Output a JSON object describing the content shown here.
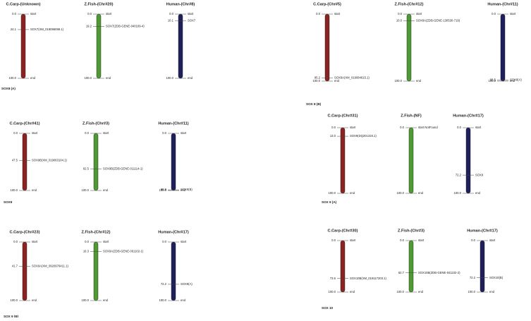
{
  "colors": {
    "red": "#8b2323",
    "green": "#4f9a32",
    "blue": "#1f1f5c",
    "text": "#222222",
    "line": "#444444"
  },
  "panels": [
    {
      "label": "SOX8 (A)",
      "tracks": [
        {
          "title": "C.Carp-(Unknown)",
          "color": "red",
          "markers": [
            {
              "pos": "0.0",
              "name": "start"
            },
            {
              "pos": "24.1",
              "name": "SOX7(XM_019096099.1)"
            },
            {
              "pos": "100.0",
              "name": "end"
            }
          ]
        },
        {
          "title": "Z.Fish-(Chr#20)",
          "color": "green",
          "markers": [
            {
              "pos": "0.0",
              "name": "start"
            },
            {
              "pos": "19.2",
              "name": "SOX7(ZDB-GENE-040109-4)"
            },
            {
              "pos": "100.0",
              "name": "end"
            }
          ]
        },
        {
          "title": "Human-(Chr#8)",
          "color": "blue",
          "markers": [
            {
              "pos": "0.0",
              "name": "start"
            },
            {
              "pos": "10.1",
              "name": "SOX7"
            },
            {
              "pos": "100.0",
              "name": "end"
            }
          ]
        }
      ]
    },
    {
      "label": "SOX 8 (B)",
      "tracks": [
        {
          "title": "C.Carp-(Chr#5)",
          "color": "red",
          "markers": [
            {
              "pos": "0.0",
              "name": "start"
            },
            {
              "pos": "95.2",
              "name": "SOX8A(XM_019084615.1)"
            },
            {
              "pos": "100.0",
              "name": "end"
            }
          ]
        },
        {
          "title": "Z.Fish-(Chr#12)",
          "color": "green",
          "markers": [
            {
              "pos": "0.0",
              "name": "start"
            },
            {
              "pos": "10.0",
              "name": "SOX8A(ZDB-GENE-130530-719)"
            },
            {
              "pos": "100.0",
              "name": "end"
            }
          ]
        },
        {
          "title": "Human-(Chr#11)",
          "color": "blue",
          "markers": [
            {
              "pos": "0.0",
              "name": "start"
            },
            {
              "pos": "98.5",
              "name": "SOX8(A)"
            },
            {
              "pos": "100.0",
              "name": "end"
            }
          ]
        }
      ]
    },
    {
      "label": "SOX9",
      "tracks": [
        {
          "title": "C.Carp-(Chr#41)",
          "color": "red",
          "markers": [
            {
              "pos": "0.0",
              "name": "start"
            },
            {
              "pos": "47.5",
              "name": "SOX9B(XM_019063104.1)"
            },
            {
              "pos": "100.0",
              "name": "end"
            }
          ]
        },
        {
          "title": "Z.Fish-(Chr#3)",
          "color": "green",
          "markers": [
            {
              "pos": "0.0",
              "name": "start"
            },
            {
              "pos": "62.5",
              "name": "SOX9B(ZDB-GENE-011114-1)"
            },
            {
              "pos": "100.0",
              "name": "end"
            }
          ]
        },
        {
          "title": "Human-(Chr#11)",
          "color": "blue",
          "markers": [
            {
              "pos": "0.0",
              "name": "start"
            },
            {
              "pos": "98.9",
              "name": "SOX9(B)"
            },
            {
              "pos": "100.0",
              "name": "end"
            }
          ]
        }
      ]
    },
    {
      "label": "SOX 9 (A)",
      "tracks": [
        {
          "title": "C.Carp-(Chr#31)",
          "color": "red",
          "markers": [
            {
              "pos": "0.0",
              "name": "start"
            },
            {
              "pos": "13.0",
              "name": "SOX9(DQ201319.1)"
            },
            {
              "pos": "100.0",
              "name": "end"
            }
          ]
        },
        {
          "title": "Z.Fish-(NF)",
          "color": "green",
          "markers": [
            {
              "pos": "0.0",
              "name": "start NotFound"
            },
            {
              "pos": "100.0",
              "name": "end"
            }
          ]
        },
        {
          "title": "Human-(Chr#17)",
          "color": "blue",
          "markers": [
            {
              "pos": "0.0",
              "name": "start"
            },
            {
              "pos": "72.2",
              "name": "SOX9"
            },
            {
              "pos": "100.0",
              "name": "end"
            }
          ]
        }
      ]
    },
    {
      "label": "SOX 9 (B)",
      "tracks": [
        {
          "title": "C.Carp-(Chr#23)",
          "color": "red",
          "markers": [
            {
              "pos": "0.0",
              "name": "start"
            },
            {
              "pos": "41.7",
              "name": "SOX9A(XM_0920976411.1)"
            },
            {
              "pos": "100.0",
              "name": "end"
            }
          ]
        },
        {
          "title": "Z.Fish-(Chr#12)",
          "color": "green",
          "markers": [
            {
              "pos": "0.0",
              "name": "start"
            },
            {
              "pos": "16.3",
              "name": "SOX9A(ZDB-GENE-061102-1)"
            },
            {
              "pos": "100.0",
              "name": "end"
            }
          ]
        },
        {
          "title": "Human-(Chr#17)",
          "color": "blue",
          "markers": [
            {
              "pos": "0.0",
              "name": "start"
            },
            {
              "pos": "72.2",
              "name": "SOX9(A)"
            },
            {
              "pos": "100.0",
              "name": "end"
            }
          ]
        }
      ]
    },
    {
      "label": "SOX 10",
      "tracks": [
        {
          "title": "C.Carp-(Chr#30)",
          "color": "red",
          "markers": [
            {
              "pos": "0.0",
              "name": "start"
            },
            {
              "pos": "73.6",
              "name": "SOX10B(XM_019117203.1)"
            },
            {
              "pos": "100.0",
              "name": "end"
            }
          ]
        },
        {
          "title": "Z.Fish-(Chr#3)",
          "color": "green",
          "markers": [
            {
              "pos": "0.0",
              "name": "start"
            },
            {
              "pos": "62.7",
              "name": "SOX10B(ZDB-GENE-041102-2)"
            },
            {
              "pos": "100.0",
              "name": "end"
            }
          ]
        },
        {
          "title": "Human-(Chr#17)",
          "color": "blue",
          "markers": [
            {
              "pos": "0.0",
              "name": "start"
            },
            {
              "pos": "72.2",
              "name": "SOX10(B)"
            },
            {
              "pos": "100.0",
              "name": "end"
            }
          ]
        }
      ]
    }
  ]
}
